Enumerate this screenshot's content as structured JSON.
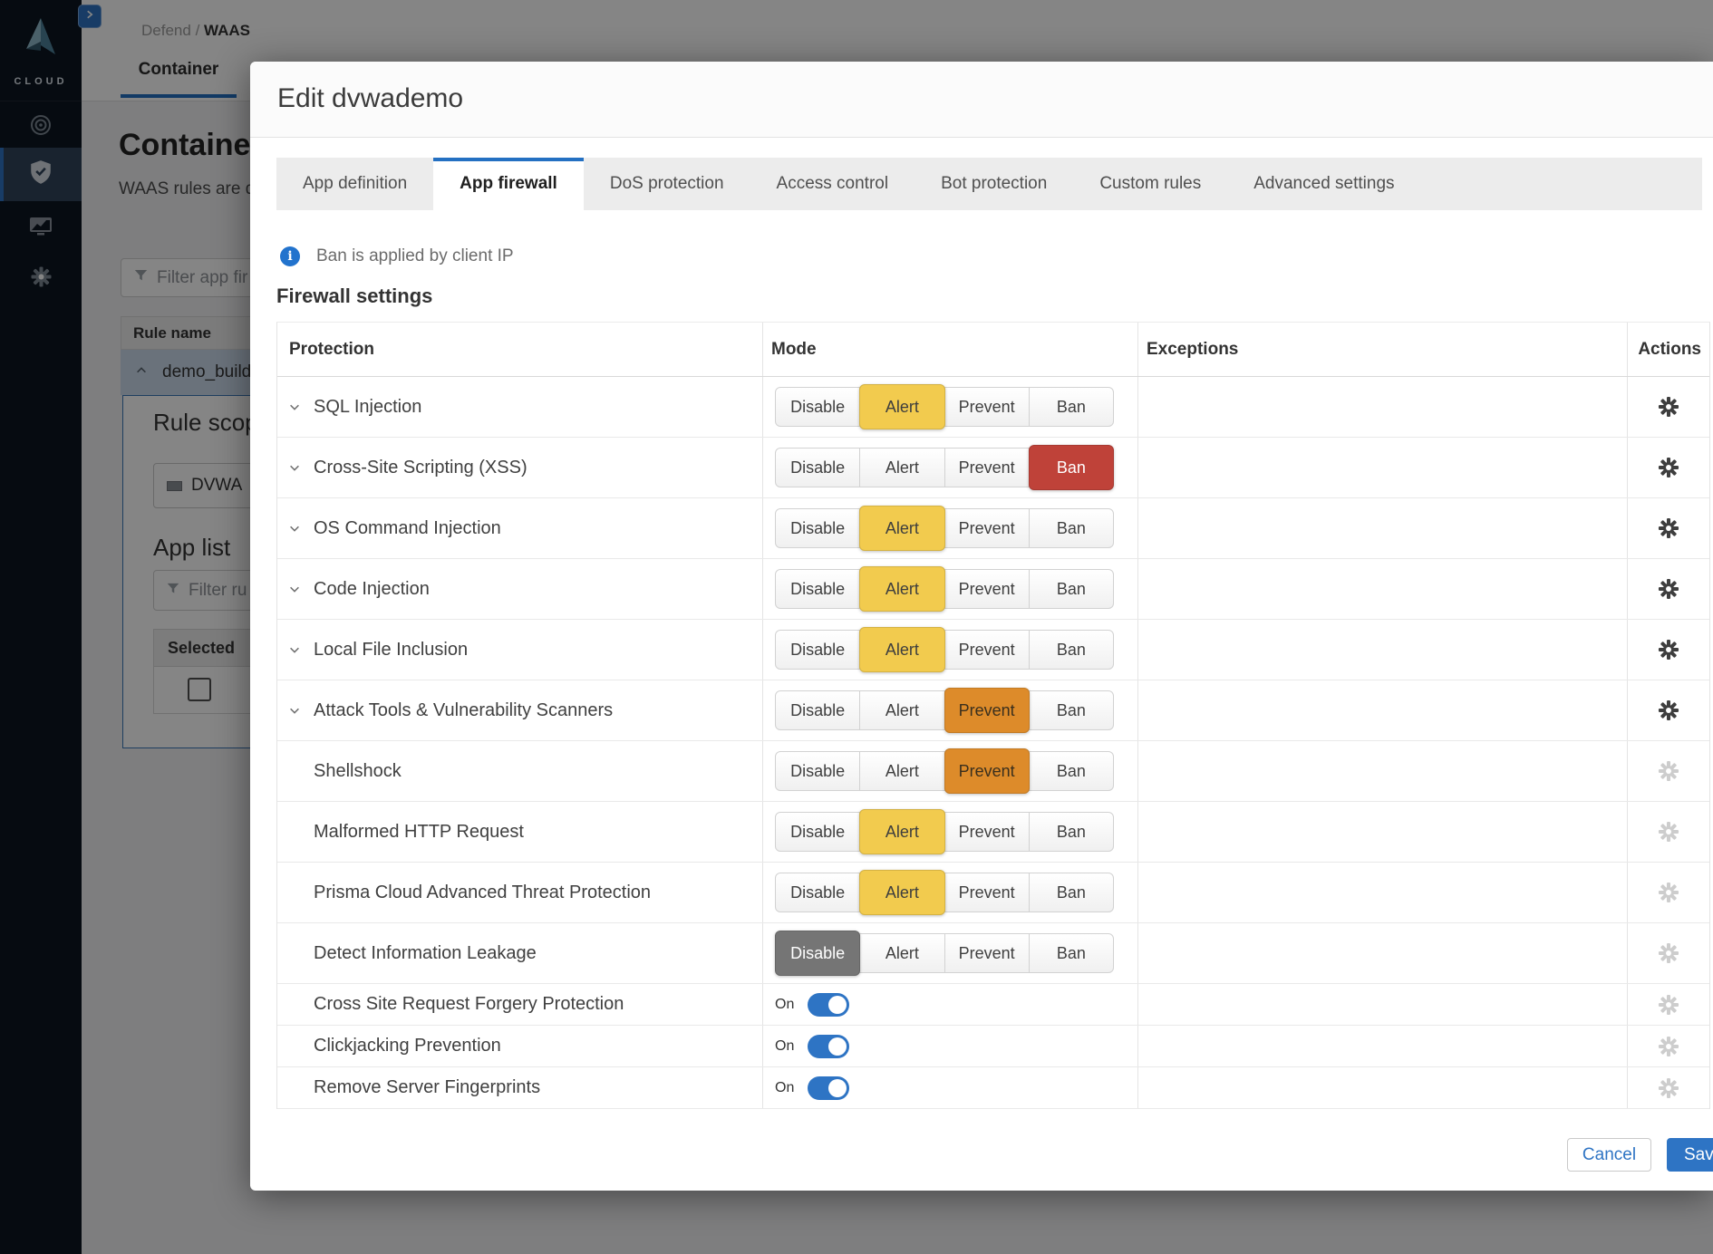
{
  "colors": {
    "accent_blue": "#2e74c4",
    "tab_active_border": "#2470c2",
    "info_blue": "#2273cd",
    "sidebar_bg": "#0c1622",
    "alert_yellow": "#f2cb4e",
    "prevent_orange": "#dd8b2a",
    "ban_red": "#bf4239",
    "disable_gray": "#757575"
  },
  "sidebar": {
    "logo_text": "CLOUD",
    "nav_icons": [
      "radar-icon",
      "shield-icon",
      "monitor-icon",
      "gear-icon"
    ]
  },
  "page": {
    "breadcrumb_section": "Defend",
    "breadcrumb_sep": "/",
    "breadcrumb_current": "WAAS",
    "top_tab": "Container",
    "title": "Container",
    "subtitle": "WAAS rules are d",
    "filter_placeholder": "Filter app fir",
    "rule_table_header": "Rule name",
    "rule_row_name": "demo_build",
    "rule_scope_label": "Rule scope",
    "scope_chip": "DVWA",
    "app_list_label": "App list",
    "app_filter_placeholder": "Filter ru",
    "selected_header": "Selected"
  },
  "modal": {
    "title": "Edit dvwademo",
    "tabs": [
      {
        "label": "App definition",
        "active": false
      },
      {
        "label": "App firewall",
        "active": true
      },
      {
        "label": "DoS protection",
        "active": false
      },
      {
        "label": "Access control",
        "active": false
      },
      {
        "label": "Bot protection",
        "active": false
      },
      {
        "label": "Custom rules",
        "active": false
      },
      {
        "label": "Advanced settings",
        "active": false
      }
    ],
    "info_banner": "Ban is applied by client IP",
    "section_title": "Firewall settings",
    "columns": [
      "Protection",
      "Mode",
      "Exceptions",
      "Actions"
    ],
    "mode_options": [
      "Disable",
      "Alert",
      "Prevent",
      "Ban"
    ],
    "mode_styles": {
      "Disable": {
        "bg": "#757575",
        "fg": "#ffffff"
      },
      "Alert": {
        "bg": "#f2cb4e",
        "fg": "#3e3e3e"
      },
      "Prevent": {
        "bg": "#dd8b2a",
        "fg": "#3a2f1d"
      },
      "Ban": {
        "bg": "#bf4239",
        "fg": "#ffffff"
      }
    },
    "rows": [
      {
        "label": "SQL Injection",
        "control": "modes",
        "selected": "Alert",
        "expandable": true,
        "gear": "active"
      },
      {
        "label": "Cross-Site Scripting (XSS)",
        "control": "modes",
        "selected": "Ban",
        "expandable": true,
        "gear": "active"
      },
      {
        "label": "OS Command Injection",
        "control": "modes",
        "selected": "Alert",
        "expandable": true,
        "gear": "active"
      },
      {
        "label": "Code Injection",
        "control": "modes",
        "selected": "Alert",
        "expandable": true,
        "gear": "active"
      },
      {
        "label": "Local File Inclusion",
        "control": "modes",
        "selected": "Alert",
        "expandable": true,
        "gear": "active"
      },
      {
        "label": "Attack Tools & Vulnerability Scanners",
        "control": "modes",
        "selected": "Prevent",
        "expandable": true,
        "gear": "active"
      },
      {
        "label": "Shellshock",
        "control": "modes",
        "selected": "Prevent",
        "expandable": false,
        "gear": "muted"
      },
      {
        "label": "Malformed HTTP Request",
        "control": "modes",
        "selected": "Alert",
        "expandable": false,
        "gear": "muted"
      },
      {
        "label": "Prisma Cloud Advanced Threat Protection",
        "control": "modes",
        "selected": "Alert",
        "expandable": false,
        "gear": "muted"
      },
      {
        "label": "Detect Information Leakage",
        "control": "modes",
        "selected": "Disable",
        "expandable": false,
        "gear": "muted"
      },
      {
        "label": "Cross Site Request Forgery Protection",
        "control": "toggle",
        "state": "On",
        "on": true,
        "gear": "muted"
      },
      {
        "label": "Clickjacking Prevention",
        "control": "toggle",
        "state": "On",
        "on": true,
        "gear": "muted"
      },
      {
        "label": "Remove Server Fingerprints",
        "control": "toggle",
        "state": "On",
        "on": true,
        "gear": "muted"
      }
    ],
    "footer": {
      "cancel": "Cancel",
      "save": "Save"
    }
  }
}
